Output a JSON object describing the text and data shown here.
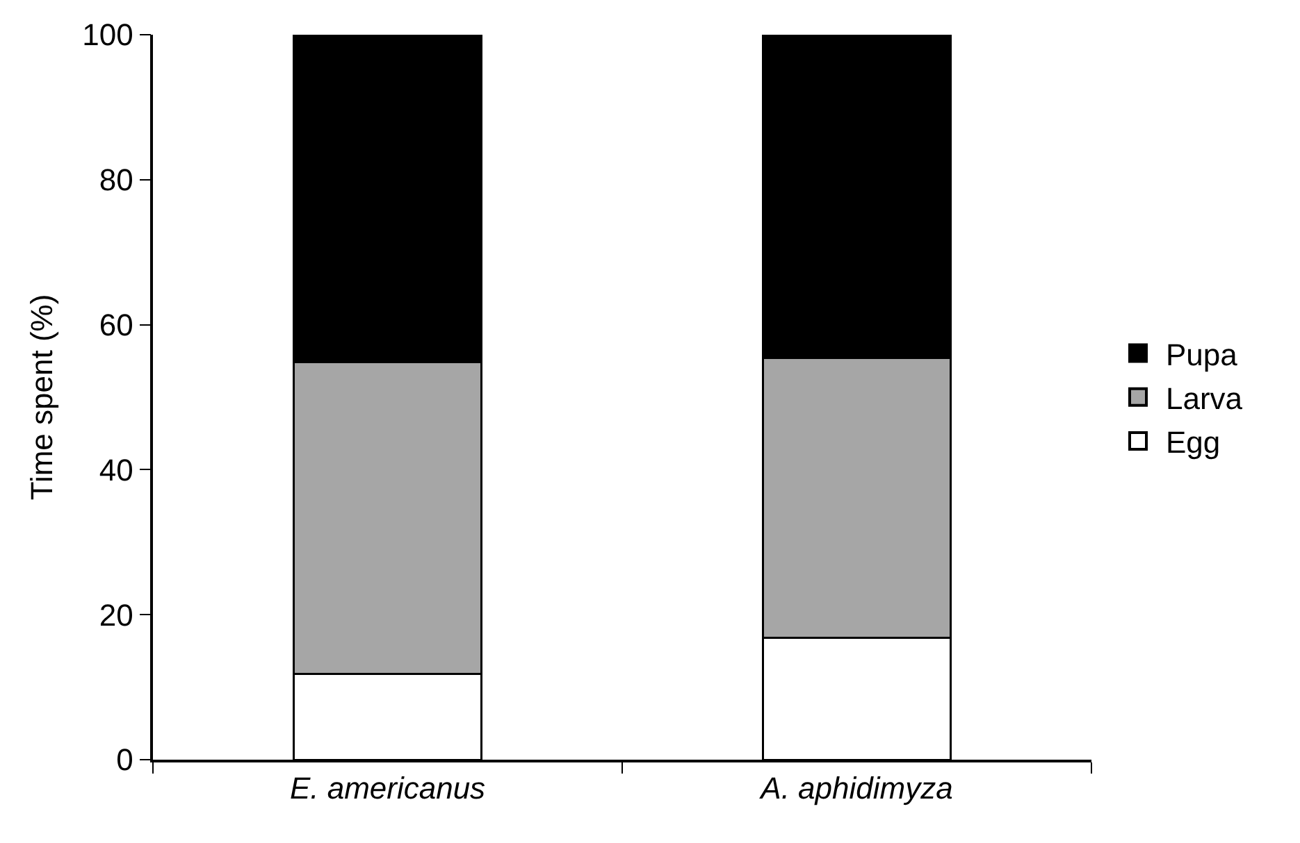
{
  "chart_data": {
    "type": "bar",
    "stacked": true,
    "ylabel": "Time spent (%)",
    "categories": [
      "E. americanus",
      "A. aphidimyza"
    ],
    "series": [
      {
        "name": "Egg",
        "color": "#ffffff",
        "values": [
          11.8,
          16.8
        ]
      },
      {
        "name": "Larva",
        "color": "#a6a6a6",
        "values": [
          43.0,
          38.6
        ]
      },
      {
        "name": "Pupa",
        "color": "#000000",
        "values": [
          45.2,
          44.6
        ]
      }
    ],
    "ylim": [
      0,
      100
    ],
    "yticks": [
      0,
      20,
      40,
      60,
      80,
      100
    ],
    "grid": false,
    "legend": "right"
  }
}
